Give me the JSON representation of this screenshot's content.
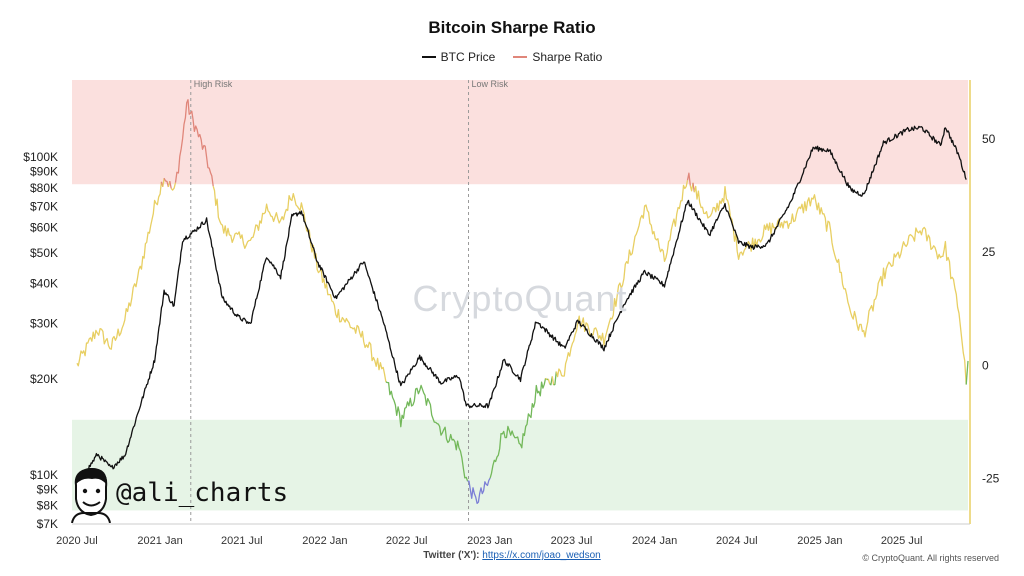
{
  "chart_data": {
    "type": "line",
    "title": "Bitcoin Sharpe Ratio",
    "xlabel": "",
    "ylabel_left": "",
    "ylabel_right": "",
    "x_tick_labels": [
      "2020 Jul",
      "2021 Jan",
      "2021 Jul",
      "2022 Jan",
      "2022 Jul",
      "2023 Jan",
      "2023 Jul",
      "2024 Jan",
      "2024 Jul",
      "2025 Jan",
      "2025 Jul"
    ],
    "x_tick_dates": [
      "2020-07-01",
      "2021-01-01",
      "2021-07-01",
      "2022-01-01",
      "2022-07-01",
      "2023-01-01",
      "2023-07-01",
      "2024-01-01",
      "2024-07-01",
      "2025-01-01",
      "2025-07-01"
    ],
    "xlim": [
      "2020-06-20",
      "2025-11-25"
    ],
    "y_left": {
      "scale": "log",
      "range": [
        7000,
        175000
      ],
      "ticks": [
        7000,
        8000,
        9000,
        10000,
        20000,
        30000,
        40000,
        50000,
        60000,
        70000,
        80000,
        90000,
        100000
      ],
      "tick_labels": [
        "$7K",
        "$8K",
        "$9K",
        "$10K",
        "$20K",
        "$30K",
        "$40K",
        "$50K",
        "$60K",
        "$70K",
        "$80K",
        "$90K",
        "$100K"
      ]
    },
    "y_right": {
      "scale": "linear",
      "range": [
        -35,
        63
      ],
      "ticks": [
        -25,
        0,
        25,
        50
      ],
      "tick_labels": [
        "-25",
        "0",
        "25",
        "50"
      ]
    },
    "zones": [
      {
        "label": "High Risk",
        "from": 40,
        "to": 63,
        "color": "#fbe0de"
      },
      {
        "label": "Low Risk",
        "from": -32,
        "to": -12,
        "color": "#e6f4e6"
      }
    ],
    "vlines": [
      {
        "date": "2021-03-10",
        "label": "High Risk"
      },
      {
        "date": "2022-11-15",
        "label": "Low Risk"
      }
    ],
    "series": [
      {
        "name": "BTC Price",
        "axis": "left",
        "color": "#111111",
        "points": [
          [
            "2020-07-01",
            9200
          ],
          [
            "2020-08-15",
            11600
          ],
          [
            "2020-09-15",
            10500
          ],
          [
            "2020-10-15",
            11500
          ],
          [
            "2020-11-15",
            16000
          ],
          [
            "2020-12-20",
            23000
          ],
          [
            "2021-01-10",
            38000
          ],
          [
            "2021-02-01",
            34000
          ],
          [
            "2021-02-20",
            55000
          ],
          [
            "2021-03-15",
            58000
          ],
          [
            "2021-04-14",
            63500
          ],
          [
            "2021-05-19",
            36000
          ],
          [
            "2021-06-22",
            31500
          ],
          [
            "2021-07-20",
            29800
          ],
          [
            "2021-08-25",
            49000
          ],
          [
            "2021-09-25",
            42000
          ],
          [
            "2021-10-20",
            65000
          ],
          [
            "2021-11-10",
            67500
          ],
          [
            "2021-12-15",
            47000
          ],
          [
            "2022-01-25",
            36000
          ],
          [
            "2022-03-28",
            47000
          ],
          [
            "2022-05-10",
            30500
          ],
          [
            "2022-06-18",
            19000
          ],
          [
            "2022-07-30",
            23500
          ],
          [
            "2022-09-15",
            19500
          ],
          [
            "2022-10-25",
            20500
          ],
          [
            "2022-11-10",
            16500
          ],
          [
            "2022-12-30",
            16500
          ],
          [
            "2023-02-01",
            23000
          ],
          [
            "2023-03-10",
            20000
          ],
          [
            "2023-04-14",
            30500
          ],
          [
            "2023-06-15",
            25000
          ],
          [
            "2023-07-15",
            30500
          ],
          [
            "2023-09-11",
            25000
          ],
          [
            "2023-10-25",
            34500
          ],
          [
            "2023-12-10",
            43500
          ],
          [
            "2024-01-23",
            39500
          ],
          [
            "2024-03-14",
            73000
          ],
          [
            "2024-05-01",
            57000
          ],
          [
            "2024-06-05",
            71000
          ],
          [
            "2024-07-05",
            54000
          ],
          [
            "2024-08-05",
            52000
          ],
          [
            "2024-09-06",
            53000
          ],
          [
            "2024-10-29",
            72500
          ],
          [
            "2024-12-17",
            107000
          ],
          [
            "2025-01-22",
            105000
          ],
          [
            "2025-03-10",
            79000
          ],
          [
            "2025-04-08",
            76000
          ],
          [
            "2025-05-22",
            111000
          ],
          [
            "2025-07-14",
            122000
          ],
          [
            "2025-08-14",
            124000
          ],
          [
            "2025-09-25",
            109000
          ],
          [
            "2025-10-06",
            125000
          ],
          [
            "2025-11-05",
            101000
          ],
          [
            "2025-11-21",
            85000
          ]
        ]
      },
      {
        "name": "Sharpe Ratio",
        "axis": "right",
        "color": "#e0867a",
        "points": [
          [
            "2020-07-01",
            0
          ],
          [
            "2020-08-15",
            8
          ],
          [
            "2020-09-15",
            4
          ],
          [
            "2020-10-15",
            10
          ],
          [
            "2020-11-15",
            20
          ],
          [
            "2020-12-20",
            35
          ],
          [
            "2021-01-10",
            42
          ],
          [
            "2021-02-01",
            38
          ],
          [
            "2021-02-20",
            50
          ],
          [
            "2021-03-01",
            58
          ],
          [
            "2021-03-15",
            54
          ],
          [
            "2021-04-14",
            46
          ],
          [
            "2021-05-19",
            30
          ],
          [
            "2021-06-22",
            28
          ],
          [
            "2021-07-20",
            27
          ],
          [
            "2021-08-25",
            35
          ],
          [
            "2021-09-25",
            31
          ],
          [
            "2021-10-20",
            38
          ],
          [
            "2021-11-10",
            35
          ],
          [
            "2021-12-15",
            22
          ],
          [
            "2022-01-25",
            12
          ],
          [
            "2022-03-28",
            6
          ],
          [
            "2022-05-10",
            -2
          ],
          [
            "2022-06-18",
            -12
          ],
          [
            "2022-07-30",
            -5
          ],
          [
            "2022-09-15",
            -14
          ],
          [
            "2022-10-25",
            -18
          ],
          [
            "2022-11-10",
            -25
          ],
          [
            "2022-12-01",
            -30
          ],
          [
            "2022-12-30",
            -26
          ],
          [
            "2023-02-01",
            -14
          ],
          [
            "2023-03-10",
            -18
          ],
          [
            "2023-04-14",
            -6
          ],
          [
            "2023-06-15",
            -1
          ],
          [
            "2023-07-15",
            10
          ],
          [
            "2023-09-11",
            6
          ],
          [
            "2023-10-25",
            20
          ],
          [
            "2023-12-10",
            35
          ],
          [
            "2024-01-23",
            23
          ],
          [
            "2024-03-14",
            42
          ],
          [
            "2024-05-01",
            32
          ],
          [
            "2024-06-05",
            38
          ],
          [
            "2024-07-05",
            25
          ],
          [
            "2024-08-05",
            27
          ],
          [
            "2024-09-06",
            30
          ],
          [
            "2024-10-29",
            32
          ],
          [
            "2024-12-17",
            37
          ],
          [
            "2025-01-22",
            30
          ],
          [
            "2025-03-10",
            12
          ],
          [
            "2025-04-08",
            7
          ],
          [
            "2025-05-22",
            20
          ],
          [
            "2025-07-14",
            27
          ],
          [
            "2025-08-14",
            30
          ],
          [
            "2025-09-25",
            24
          ],
          [
            "2025-10-06",
            26
          ],
          [
            "2025-11-05",
            12
          ],
          [
            "2025-11-21",
            -3
          ],
          [
            "2025-11-25",
            1
          ]
        ]
      }
    ]
  },
  "watermark": "CryptoQuant",
  "brand": "@ali_charts",
  "footer": {
    "label": "Twitter ('X'):",
    "link": "https://x.com/joao_wedson",
    "copyright": "© CryptoQuant. All rights reserved"
  },
  "colors": {
    "sharpe_high": "#e0867a",
    "sharpe_mid": "#e8cf63",
    "sharpe_low": "#73b85a",
    "sharpe_extreme_low": "#7c7fd6",
    "btc_line": "#111111",
    "right_axis": "#e8cf63"
  },
  "icons": {
    "avatar": "cartoon-face-icon"
  }
}
